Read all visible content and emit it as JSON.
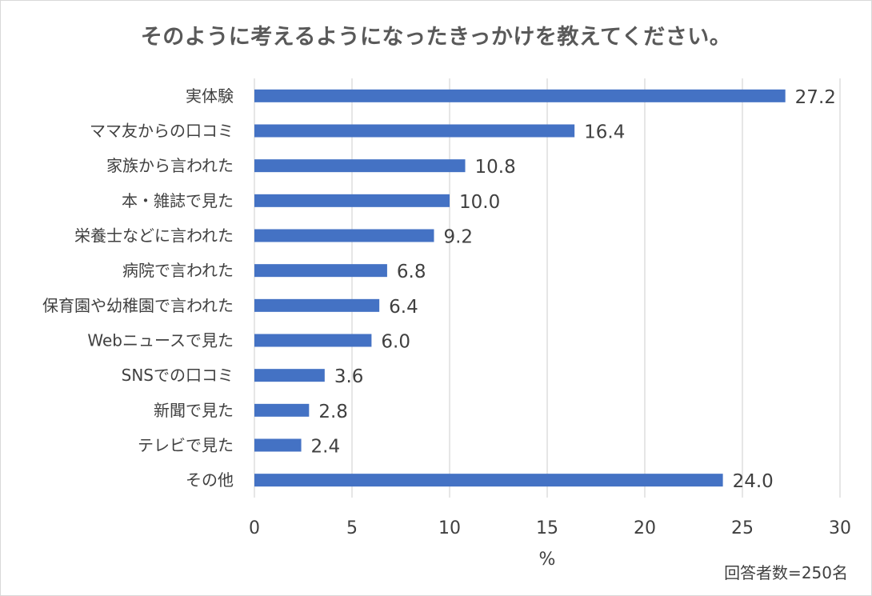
{
  "chart_data": {
    "type": "bar",
    "orientation": "horizontal",
    "title": "そのように考えるようになったきっかけを教えてください。",
    "categories": [
      "実体験",
      "ママ友からの口コミ",
      "家族から言われた",
      "本・雑誌で見た",
      "栄養士などに言われた",
      "病院で言われた",
      "保育園や幼稚園で言われた",
      "Webニュースで見た",
      "SNSでの口コミ",
      "新聞で見た",
      "テレビで見た",
      "その他"
    ],
    "values": [
      27.2,
      16.4,
      10.8,
      10.0,
      9.2,
      6.8,
      6.4,
      6.0,
      3.6,
      2.8,
      2.4,
      24.0
    ],
    "value_labels": [
      "27.2",
      "16.4",
      "10.8",
      "10.0",
      "9.2",
      "6.8",
      "6.4",
      "6.0",
      "3.6",
      "2.8",
      "2.4",
      "24.0"
    ],
    "xlabel": "%",
    "xlim": [
      0,
      30
    ],
    "xticks": [
      0,
      5,
      10,
      15,
      20,
      25,
      30
    ],
    "grid": "vertical",
    "bar_color": "#4472c4",
    "footnote": "回答者数=250名"
  }
}
